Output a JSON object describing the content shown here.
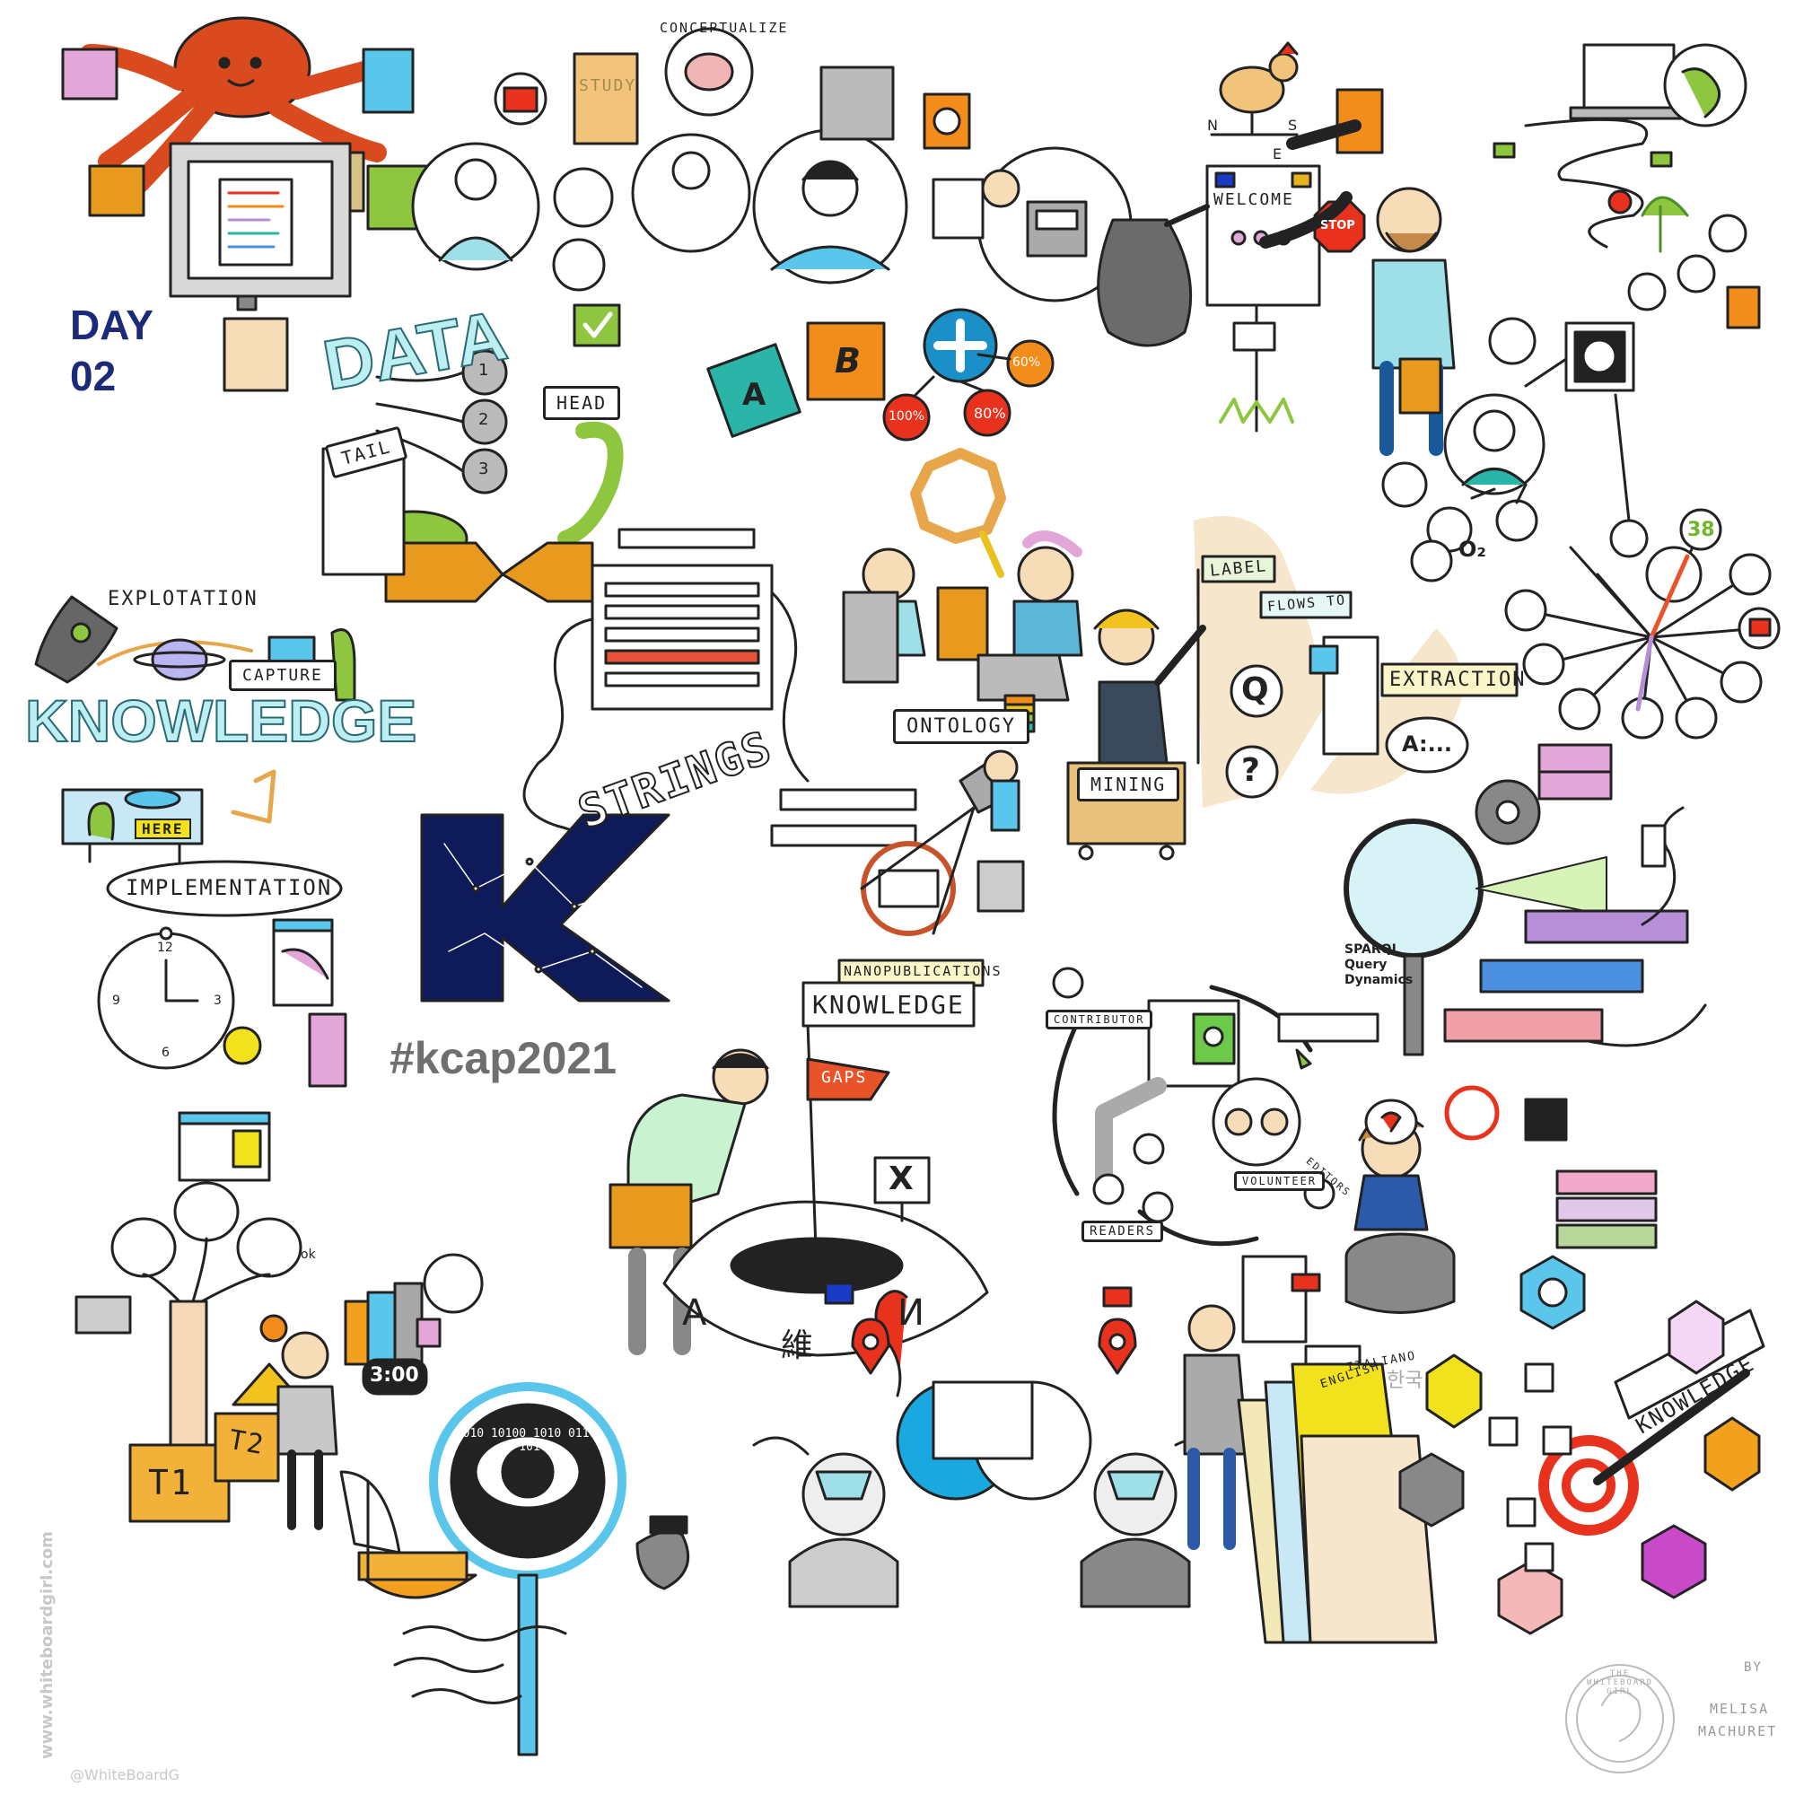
{
  "header": {
    "day_label": "DAY",
    "day_number": "02"
  },
  "center": {
    "letter": "K",
    "hashtag": "#kcap2021"
  },
  "labels": {
    "study": "STUDY",
    "conceptualize": "CONCEPTUALIZE",
    "data": "DATA",
    "tail": "TAIL",
    "head": "HEAD",
    "gear1": "1",
    "gear2": "2",
    "gear3": "3",
    "explotation": "EXPLOTATION",
    "capture": "CAPTURE",
    "knowledge_left": "KNOWLEDGE",
    "here": "HERE",
    "implementation": "IMPLEMENTATION",
    "strings": "STRINGS",
    "ontology": "ONTOLOGY",
    "nanopublications": "NANOPUBLICATIONS",
    "label": "LABEL",
    "flows_to": "FLOWS TO",
    "extraction": "EXTRACTION",
    "mining": "MINING",
    "q": "Q",
    "a": "A:...",
    "question_mark": "?",
    "welcome": "WELCOME",
    "stop": "STOP",
    "compass_n": "N",
    "compass_s": "S",
    "compass_e": "E",
    "tile_a": "A",
    "tile_b": "B",
    "pct_100": "100%",
    "pct_80": "80%",
    "pct_60": "60%",
    "o2": "O₂",
    "num_38": "38",
    "sparql": "SPARQL\nQuery\nDynamics",
    "knowledge_center": "KNOWLEDGE",
    "gaps": "GAPS",
    "x_mark": "X",
    "puzzle_a": "A",
    "puzzle_wei": "維",
    "puzzle_i": "И",
    "contributor": "CONTRIBUTOR",
    "volunteer": "VOLUNTEER",
    "editors": "EDITORS",
    "readers": "READERS",
    "clock_12": "12",
    "clock_3": "3",
    "clock_6": "6",
    "clock_9": "9",
    "t1": "T1",
    "t2": "T2",
    "timer": "3:00",
    "binary": "010 10100 1010 0110 101",
    "english": "ENGLISH",
    "italiano": "ITALIANO",
    "korean": "한국",
    "knowledge_right": "KNOWLEDGE",
    "ok": "ok"
  },
  "credits": {
    "website": "www.whiteboardgirl.com",
    "handle": "@WhiteBoardG",
    "by": "BY",
    "author_first": "MELISA",
    "author_last": "MACHURET",
    "logo_text": "THE WHITEBOARD GIRL"
  },
  "colors": {
    "k_fill": "#0e1a5a",
    "day_text": "#1c2a7a",
    "hashtag_text": "#6f6f6f",
    "octopus": "#d94a1e",
    "box_orange": "#e89a1e",
    "snake_green": "#8ec63f",
    "knowledge_fill": "#bdeef2",
    "tile_teal": "#2bb5a8",
    "tile_orange": "#f28c1a",
    "plus_blue": "#1a8fc8",
    "pin_red": "#e8321e",
    "bar_purple": "#b78fd9",
    "bar_blue": "#4a8fe0",
    "bar_pink": "#f2a0a8"
  }
}
